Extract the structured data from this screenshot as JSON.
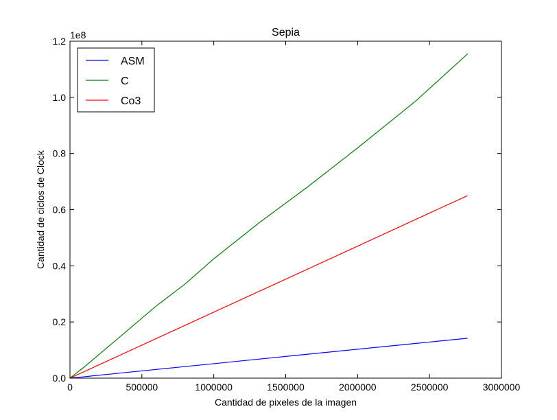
{
  "chart_data": {
    "type": "line",
    "title": "Sepia",
    "xlabel": "Cantidad de pixeles de la imagen",
    "ylabel": "Cantidad de ciclos de Clock",
    "y_offset_label": "1e8",
    "xlim": [
      0,
      3000000
    ],
    "ylim": [
      0,
      120000000
    ],
    "x_ticks": [
      0,
      500000,
      1000000,
      1500000,
      2000000,
      2500000,
      3000000
    ],
    "x_tick_labels": [
      "0",
      "500000",
      "1000000",
      "1500000",
      "2000000",
      "2500000",
      "3000000"
    ],
    "y_ticks": [
      0,
      20000000,
      40000000,
      60000000,
      80000000,
      100000000,
      120000000
    ],
    "y_tick_labels": [
      "0.0",
      "0.2",
      "0.4",
      "0.6",
      "0.8",
      "1.0",
      "1.2"
    ],
    "grid": false,
    "legend_position": "top-left",
    "series": [
      {
        "name": "ASM",
        "color": "#0000ff",
        "x": [
          0,
          100000,
          300000,
          600000,
          1000000,
          1300000,
          1600000,
          2000000,
          2400000,
          2765000
        ],
        "y": [
          0,
          500000,
          1550000,
          3100000,
          5150000,
          6700000,
          8250000,
          10300000,
          12350000,
          14200000
        ]
      },
      {
        "name": "C",
        "color": "#008000",
        "x": [
          0,
          100000,
          250000,
          400000,
          600000,
          800000,
          1000000,
          1320000,
          1650000,
          2000000,
          2400000,
          2765000
        ],
        "y": [
          0,
          4000000,
          10500000,
          17000000,
          25700000,
          33500000,
          42500000,
          55500000,
          68000000,
          82000000,
          98500000,
          115500000
        ]
      },
      {
        "name": "Co3",
        "color": "#ff0000",
        "x": [
          0,
          500000,
          1000000,
          1500000,
          2000000,
          2500000,
          2765000
        ],
        "y": [
          0,
          11750000,
          23500000,
          35250000,
          47000000,
          58800000,
          65000000
        ]
      }
    ]
  }
}
